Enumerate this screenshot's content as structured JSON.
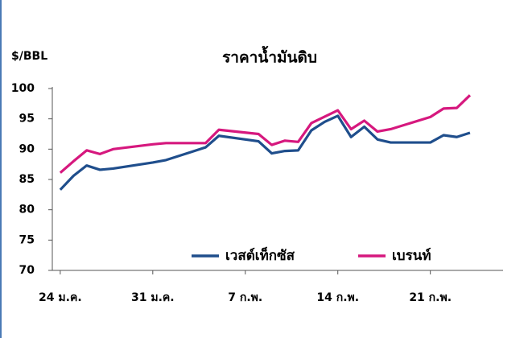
{
  "chart_data": {
    "type": "line",
    "title": "ราคาน้ำมันดิบ",
    "y_label": "$/BBL",
    "series": [
      {
        "name": "เวสต์เท็กซัส",
        "color": "#1f4e8c",
        "x": [
          0,
          1,
          2,
          3,
          4,
          7,
          8,
          9,
          10,
          11,
          12,
          15,
          16,
          17,
          18,
          19,
          20,
          21,
          22,
          23,
          24,
          25,
          28,
          29,
          30,
          31
        ],
        "values": [
          83.3,
          85.6,
          87.3,
          86.6,
          86.8,
          87.8,
          88.2,
          88.9,
          89.6,
          90.3,
          92.2,
          91.3,
          89.3,
          89.7,
          89.8,
          93.1,
          94.5,
          95.5,
          92.0,
          93.7,
          91.6,
          91.1,
          91.1,
          92.3,
          92.0,
          92.7
        ]
      },
      {
        "name": "เบรนท์",
        "color": "#d6187e",
        "x": [
          0,
          1,
          2,
          3,
          4,
          7,
          8,
          11,
          12,
          15,
          16,
          17,
          18,
          19,
          21,
          22,
          23,
          24,
          25,
          28,
          29,
          30,
          31
        ],
        "values": [
          86.1,
          88.0,
          89.8,
          89.2,
          90.0,
          90.8,
          91.0,
          91.0,
          93.2,
          92.5,
          90.7,
          91.4,
          91.2,
          94.3,
          96.4,
          93.3,
          94.7,
          92.9,
          93.3,
          95.3,
          96.7,
          96.8,
          98.9
        ]
      }
    ],
    "xlim": [
      -0.6,
      33.5
    ],
    "xticks": [
      {
        "value": 0,
        "label": "24 ม.ค."
      },
      {
        "value": 7,
        "label": "31 ม.ค."
      },
      {
        "value": 14,
        "label": "7 ก.พ."
      },
      {
        "value": 21,
        "label": "14 ก.พ."
      },
      {
        "value": 28,
        "label": "21 ก.พ."
      }
    ],
    "ylim": [
      70,
      100
    ],
    "yticks": [
      70,
      75,
      80,
      85,
      90,
      95,
      100
    ],
    "grid": false
  }
}
